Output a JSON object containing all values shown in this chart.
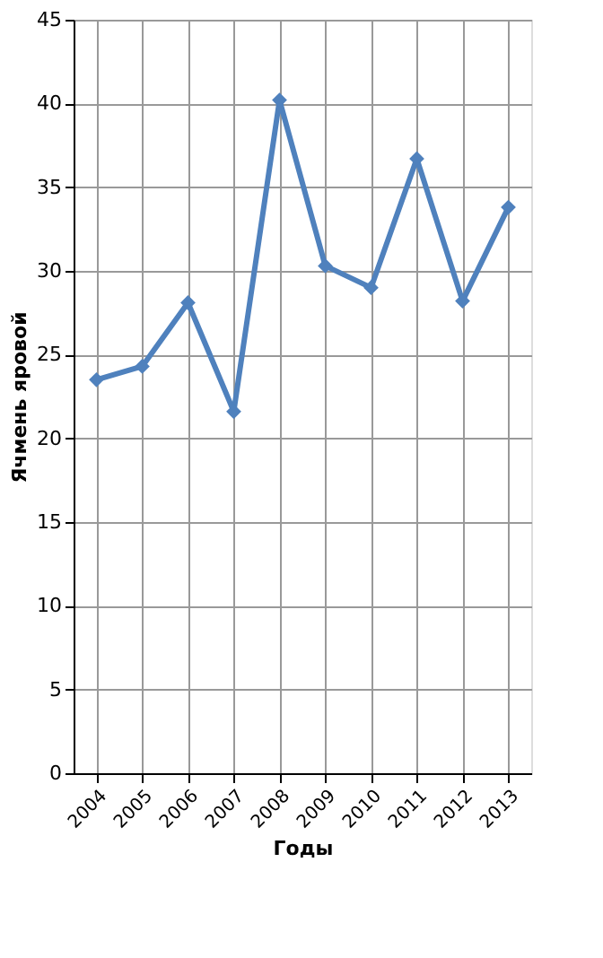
{
  "chart_data": {
    "type": "line",
    "xlabel": "Годы",
    "ylabel": "Ячмень яровой",
    "categories": [
      "2004",
      "2005",
      "2006",
      "2007",
      "2008",
      "2009",
      "2010",
      "2011",
      "2012",
      "2013"
    ],
    "series": [
      {
        "color": "#4f81bd",
        "values": [
          23.5,
          24.3,
          28.1,
          21.6,
          40.2,
          30.3,
          29.0,
          36.7,
          28.2,
          33.8
        ]
      }
    ],
    "ylim": [
      0,
      45
    ],
    "yticks": [
      0,
      5,
      10,
      15,
      20,
      25,
      30,
      35,
      40,
      45
    ],
    "grid": true,
    "marker": "diamond",
    "line_style": "solid"
  }
}
